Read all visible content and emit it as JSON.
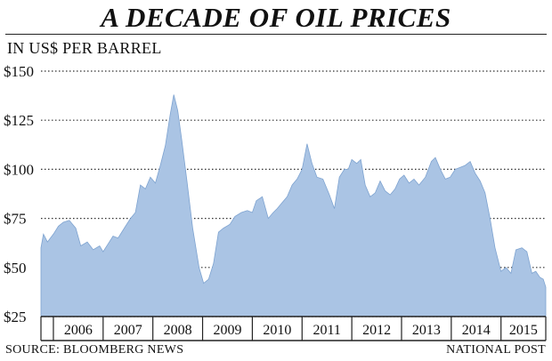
{
  "header": {
    "title": "A DECADE OF OIL PRICES",
    "subtitle": "IN US$ PER BARREL"
  },
  "footer": {
    "source": "SOURCE: BLOOMBERG NEWS",
    "credit": "NATIONAL POST"
  },
  "colors": {
    "fill": "#aac4e4",
    "edge": "#7ea3d0",
    "grid": "#333333",
    "text": "#111111"
  },
  "chart_data": {
    "type": "area",
    "title": "A DECADE OF OIL PRICES",
    "subtitle": "IN US$ PER BARREL",
    "xlabel": "",
    "ylabel": "",
    "grid": true,
    "legend": "none",
    "xlim": [
      2005.75,
      2015.9
    ],
    "ylim": [
      25,
      150
    ],
    "y_ticks": [
      25,
      50,
      75,
      100,
      125,
      150
    ],
    "y_tick_labels": [
      "$25",
      "$50",
      "$75",
      "$100",
      "$125",
      "$150"
    ],
    "year_labels": [
      "2006",
      "2007",
      "2008",
      "2009",
      "2010",
      "2011",
      "2012",
      "2013",
      "2014",
      "2015"
    ],
    "year_boundaries": [
      2006,
      2007,
      2008,
      2009,
      2010,
      2011,
      2012,
      2013,
      2014,
      2015
    ],
    "series": [
      {
        "x": [
          2005.75,
          2005.8,
          2005.88,
          2006.0,
          2006.1,
          2006.2,
          2006.32,
          2006.45,
          2006.55,
          2006.68,
          2006.8,
          2006.93,
          2007.0,
          2007.1,
          2007.2,
          2007.3,
          2007.45,
          2007.55,
          2007.65,
          2007.75,
          2007.85,
          2007.95,
          2008.05,
          2008.15,
          2008.25,
          2008.35,
          2008.42,
          2008.5,
          2008.58,
          2008.68,
          2008.8,
          2008.93,
          2009.02,
          2009.12,
          2009.22,
          2009.32,
          2009.42,
          2009.55,
          2009.65,
          2009.78,
          2009.9,
          2010.0,
          2010.08,
          2010.2,
          2010.32,
          2010.42,
          2010.5,
          2010.6,
          2010.7,
          2010.8,
          2010.9,
          2011.0,
          2011.1,
          2011.2,
          2011.3,
          2011.42,
          2011.55,
          2011.65,
          2011.75,
          2011.85,
          2011.93,
          2012.0,
          2012.1,
          2012.18,
          2012.27,
          2012.37,
          2012.47,
          2012.57,
          2012.67,
          2012.77,
          2012.87,
          2012.96,
          2013.05,
          2013.15,
          2013.25,
          2013.35,
          2013.48,
          2013.6,
          2013.68,
          2013.78,
          2013.88,
          2013.98,
          2014.08,
          2014.18,
          2014.28,
          2014.38,
          2014.48,
          2014.58,
          2014.68,
          2014.78,
          2014.88,
          2015.0,
          2015.1,
          2015.2,
          2015.3,
          2015.42,
          2015.52,
          2015.62,
          2015.7,
          2015.78,
          2015.85,
          2015.9
        ],
        "y": [
          60,
          67,
          63,
          67,
          71,
          73,
          74,
          70,
          61,
          63,
          59,
          61,
          58,
          62,
          66,
          65,
          71,
          75,
          78,
          92,
          90,
          96,
          93,
          102,
          112,
          128,
          138,
          130,
          115,
          95,
          70,
          50,
          42,
          44,
          52,
          68,
          70,
          72,
          76,
          78,
          79,
          78,
          84,
          86,
          75,
          78,
          80,
          83,
          86,
          92,
          95,
          100,
          113,
          103,
          96,
          95,
          87,
          80,
          96,
          100,
          100,
          105,
          103,
          105,
          92,
          86,
          88,
          94,
          89,
          87,
          90,
          95,
          97,
          93,
          95,
          92,
          96,
          104,
          106,
          100,
          95,
          96,
          100,
          101,
          102,
          104,
          98,
          94,
          88,
          75,
          60,
          48,
          50,
          47,
          59,
          60,
          58,
          47,
          48,
          45,
          44,
          40
        ]
      }
    ]
  }
}
